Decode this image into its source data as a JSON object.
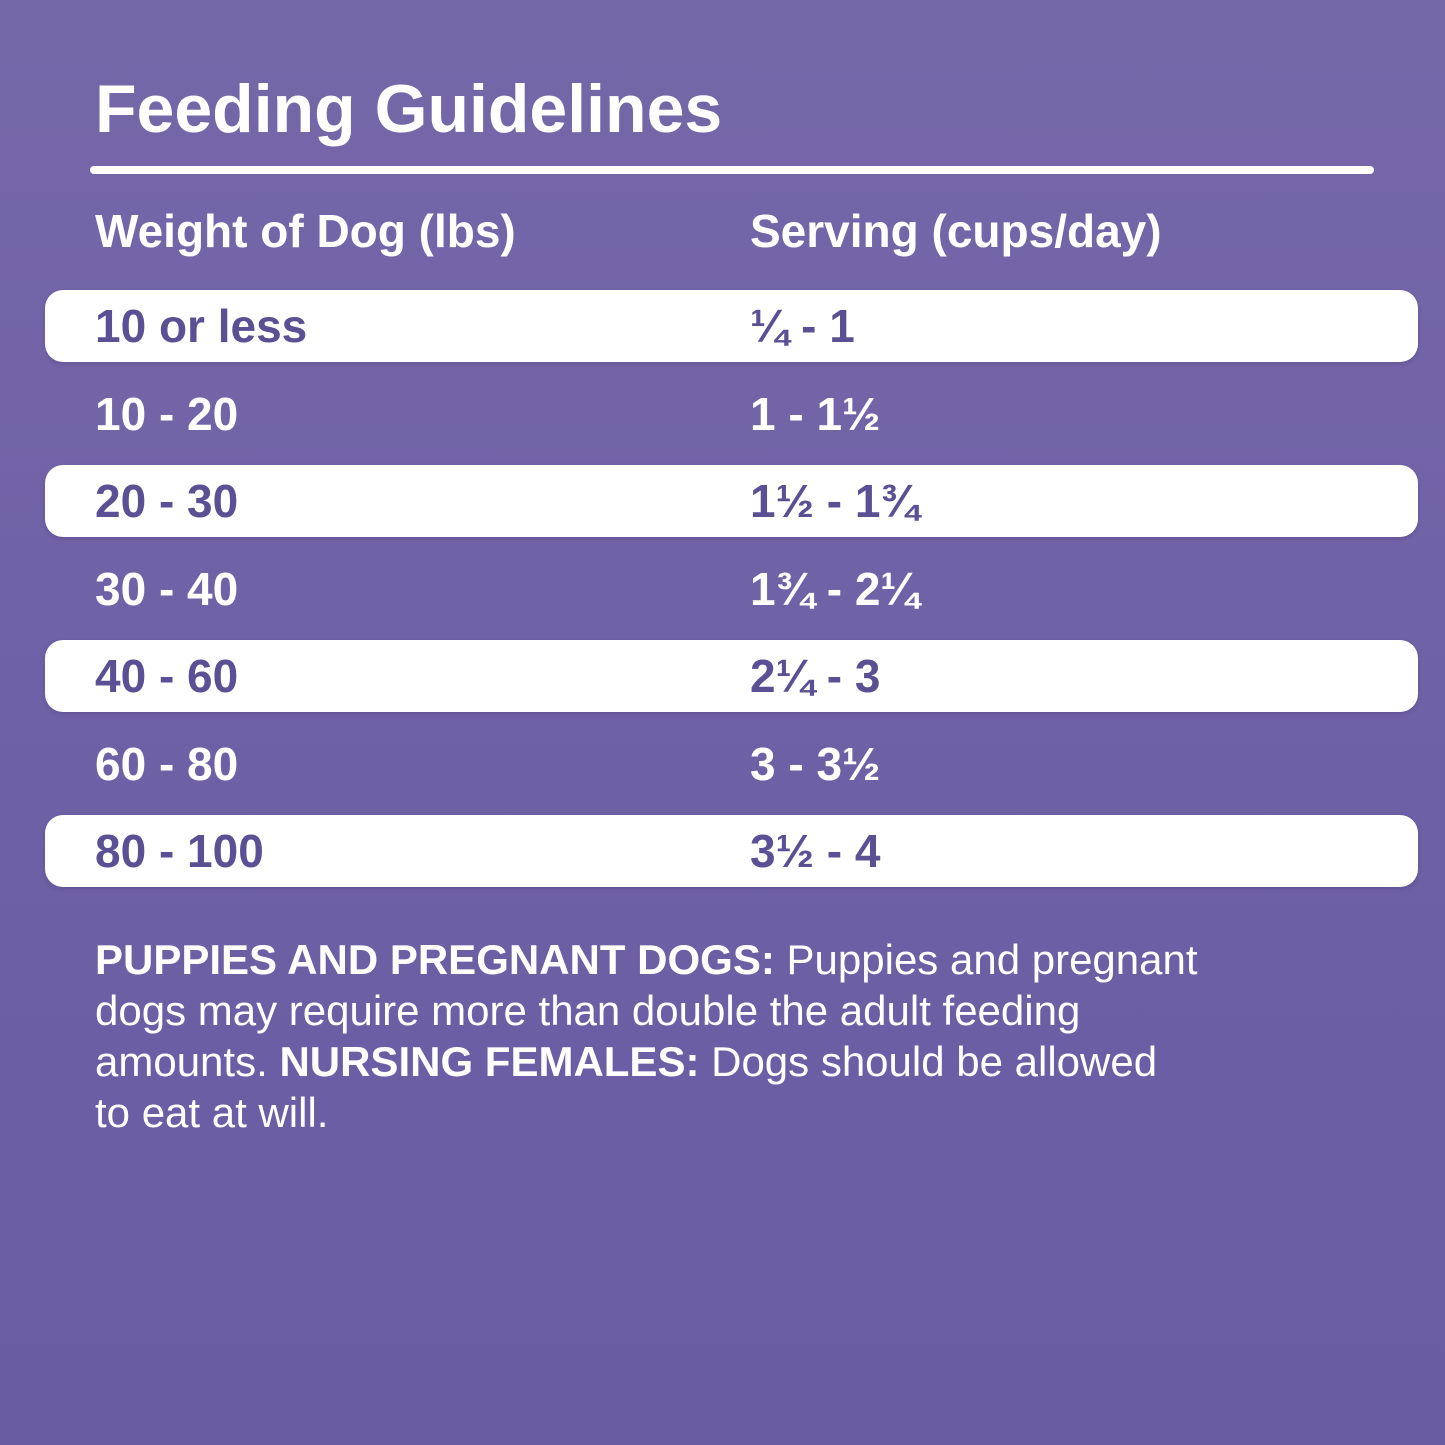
{
  "page": {
    "title": "Feeding Guidelines"
  },
  "colors": {
    "background_top": "#7568A9",
    "background_bottom": "#6A5CA2",
    "row_background": "#FFFFFF",
    "row_text_purple": "#5C5094",
    "text_white": "#FFFFFF"
  },
  "table": {
    "columns": [
      {
        "label": "Weight of Dog (lbs)"
      },
      {
        "label": "Serving (cups/day)"
      }
    ],
    "rows": [
      {
        "weight": "10 or less",
        "serving": "¼ - 1"
      },
      {
        "weight": "10 - 20",
        "serving": "1 - 1½"
      },
      {
        "weight": "20 - 30",
        "serving": "1½ - 1¾"
      },
      {
        "weight": "30 - 40",
        "serving": "1¾ - 2¼"
      },
      {
        "weight": "40 - 60",
        "serving": "2¼ - 3"
      },
      {
        "weight": "60 - 80",
        "serving": "3 - 3½"
      },
      {
        "weight": "80 - 100",
        "serving": "3½ - 4"
      }
    ]
  },
  "note": {
    "lines": [
      [
        {
          "text": "PUPPIES AND PREGNANT DOGS:",
          "bold": true
        },
        {
          "text": " Puppies and pregnant",
          "bold": false
        }
      ],
      [
        {
          "text": "dogs may require more than double the adult feeding",
          "bold": false
        }
      ],
      [
        {
          "text": "amounts. ",
          "bold": false
        },
        {
          "text": "NURSING FEMALES:",
          "bold": true
        },
        {
          "text": " Dogs should be allowed",
          "bold": false
        }
      ],
      [
        {
          "text": "to eat at will.",
          "bold": false
        }
      ]
    ]
  }
}
